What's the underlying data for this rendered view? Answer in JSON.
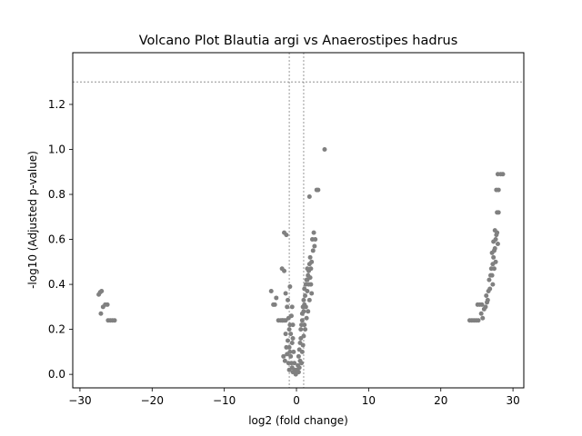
{
  "chart_data": {
    "type": "scatter",
    "title": "Volcano Plot Blautia argi vs Anaerostipes hadrus",
    "xlabel": "log2 (fold change)",
    "ylabel": "-log10 (Adjusted p-value)",
    "xlim": [
      -31,
      31.5
    ],
    "ylim": [
      -0.06,
      1.43
    ],
    "xticks": [
      -30,
      -20,
      -10,
      0,
      10,
      20,
      30
    ],
    "yticks": [
      0.0,
      0.2,
      0.4,
      0.6,
      0.8,
      1.0,
      1.2
    ],
    "xtick_labels": [
      "−30",
      "−20",
      "−10",
      "0",
      "10",
      "20",
      "30"
    ],
    "ytick_labels": [
      "0.0",
      "0.2",
      "0.4",
      "0.6",
      "0.8",
      "1.0",
      "1.2"
    ],
    "reference_lines": {
      "vertical": [
        -1,
        1
      ],
      "horizontal": [
        1.3
      ]
    },
    "grid": false,
    "point_color": "#808080",
    "line_color": "#808080",
    "series": [
      {
        "points": [
          [
            -27.4,
            0.355
          ],
          [
            -27.2,
            0.365
          ],
          [
            -27.0,
            0.37
          ],
          [
            -27.1,
            0.27
          ],
          [
            -26.8,
            0.3
          ],
          [
            -26.5,
            0.31
          ],
          [
            -26.2,
            0.31
          ],
          [
            -26.1,
            0.24
          ],
          [
            -25.8,
            0.24
          ],
          [
            -25.5,
            0.24
          ],
          [
            -25.2,
            0.24
          ],
          [
            -3.5,
            0.37
          ],
          [
            -3.2,
            0.31
          ],
          [
            -3.0,
            0.31
          ],
          [
            -2.8,
            0.34
          ],
          [
            -2.5,
            0.24
          ],
          [
            -2.2,
            0.24
          ],
          [
            -2.0,
            0.24
          ],
          [
            -1.9,
            0.24
          ],
          [
            -1.7,
            0.24
          ],
          [
            -1.5,
            0.24
          ],
          [
            -2.0,
            0.47
          ],
          [
            -1.7,
            0.46
          ],
          [
            -1.5,
            0.36
          ],
          [
            -1.3,
            0.3
          ],
          [
            -1.2,
            0.33
          ],
          [
            -1.1,
            0.25
          ],
          [
            -1.0,
            0.2
          ],
          [
            -1.5,
            0.18
          ],
          [
            -1.4,
            0.12
          ],
          [
            -1.8,
            0.08
          ],
          [
            -1.6,
            0.06
          ],
          [
            -1.2,
            0.15
          ],
          [
            -0.9,
            0.22
          ],
          [
            -0.8,
            0.18
          ],
          [
            -0.9,
            0.1
          ],
          [
            -0.7,
            0.05
          ],
          [
            -0.6,
            0.03
          ],
          [
            -0.5,
            0.01
          ],
          [
            -1.0,
            0.02
          ],
          [
            -1.1,
            0.05
          ],
          [
            -0.8,
            0.08
          ],
          [
            -1.3,
            0.09
          ],
          [
            -0.6,
            0.14
          ],
          [
            -0.5,
            0.16
          ],
          [
            -0.7,
            0.26
          ],
          [
            -0.6,
            0.3
          ],
          [
            -0.9,
            0.39
          ],
          [
            -0.5,
            0.22
          ],
          [
            -1.0,
            0.12
          ],
          [
            -0.4,
            0.1
          ],
          [
            -0.3,
            0.05
          ],
          [
            -0.2,
            0.02
          ],
          [
            -0.1,
            0.0
          ],
          [
            0.0,
            0.01
          ],
          [
            0.1,
            0.02
          ],
          [
            0.2,
            0.04
          ],
          [
            0.3,
            0.01
          ],
          [
            0.4,
            0.03
          ],
          [
            0.5,
            0.06
          ],
          [
            -1.7,
            0.63
          ],
          [
            -1.4,
            0.62
          ],
          [
            0.3,
            0.08
          ],
          [
            0.4,
            0.11
          ],
          [
            0.5,
            0.14
          ],
          [
            0.6,
            0.16
          ],
          [
            0.6,
            0.2
          ],
          [
            0.7,
            0.22
          ],
          [
            0.8,
            0.24
          ],
          [
            0.8,
            0.27
          ],
          [
            0.9,
            0.3
          ],
          [
            1.0,
            0.28
          ],
          [
            1.0,
            0.33
          ],
          [
            1.1,
            0.31
          ],
          [
            1.2,
            0.35
          ],
          [
            1.1,
            0.38
          ],
          [
            1.3,
            0.4
          ],
          [
            1.4,
            0.42
          ],
          [
            1.5,
            0.37
          ],
          [
            1.6,
            0.44
          ],
          [
            1.7,
            0.46
          ],
          [
            1.5,
            0.47
          ],
          [
            1.8,
            0.49
          ],
          [
            1.9,
            0.52
          ],
          [
            2.0,
            0.47
          ],
          [
            2.1,
            0.5
          ],
          [
            2.3,
            0.55
          ],
          [
            2.5,
            0.57
          ],
          [
            2.6,
            0.6
          ],
          [
            2.2,
            0.6
          ],
          [
            2.4,
            0.63
          ],
          [
            2.0,
            0.4
          ],
          [
            1.8,
            0.33
          ],
          [
            1.6,
            0.28
          ],
          [
            1.4,
            0.25
          ],
          [
            1.2,
            0.2
          ],
          [
            1.0,
            0.17
          ],
          [
            0.9,
            0.13
          ],
          [
            0.8,
            0.1
          ],
          [
            0.7,
            0.05
          ],
          [
            1.5,
            0.42
          ],
          [
            1.3,
            0.3
          ],
          [
            1.1,
            0.22
          ],
          [
            1.9,
            0.43
          ],
          [
            2.1,
            0.36
          ],
          [
            1.7,
            0.4
          ],
          [
            2.8,
            0.82
          ],
          [
            3.0,
            0.82
          ],
          [
            1.8,
            0.79
          ],
          [
            3.9,
            1.0
          ],
          [
            24.0,
            0.24
          ],
          [
            24.3,
            0.24
          ],
          [
            24.6,
            0.24
          ],
          [
            24.9,
            0.24
          ],
          [
            25.2,
            0.24
          ],
          [
            25.1,
            0.31
          ],
          [
            25.4,
            0.31
          ],
          [
            25.7,
            0.31
          ],
          [
            25.6,
            0.27
          ],
          [
            25.8,
            0.25
          ],
          [
            26.0,
            0.29
          ],
          [
            26.2,
            0.3
          ],
          [
            26.4,
            0.32
          ],
          [
            26.3,
            0.35
          ],
          [
            26.6,
            0.37
          ],
          [
            26.8,
            0.38
          ],
          [
            26.7,
            0.42
          ],
          [
            26.9,
            0.44
          ],
          [
            27.1,
            0.44
          ],
          [
            27.0,
            0.47
          ],
          [
            27.2,
            0.49
          ],
          [
            27.3,
            0.52
          ],
          [
            27.1,
            0.54
          ],
          [
            27.4,
            0.55
          ],
          [
            27.5,
            0.56
          ],
          [
            27.3,
            0.59
          ],
          [
            27.6,
            0.6
          ],
          [
            27.7,
            0.62
          ],
          [
            27.5,
            0.64
          ],
          [
            27.8,
            0.63
          ],
          [
            27.9,
            0.58
          ],
          [
            27.6,
            0.5
          ],
          [
            27.4,
            0.47
          ],
          [
            27.8,
            0.72
          ],
          [
            28.0,
            0.72
          ],
          [
            27.7,
            0.82
          ],
          [
            28.0,
            0.82
          ],
          [
            27.9,
            0.89
          ],
          [
            28.3,
            0.89
          ],
          [
            28.6,
            0.89
          ],
          [
            27.2,
            0.4
          ],
          [
            26.5,
            0.33
          ]
        ]
      }
    ]
  }
}
